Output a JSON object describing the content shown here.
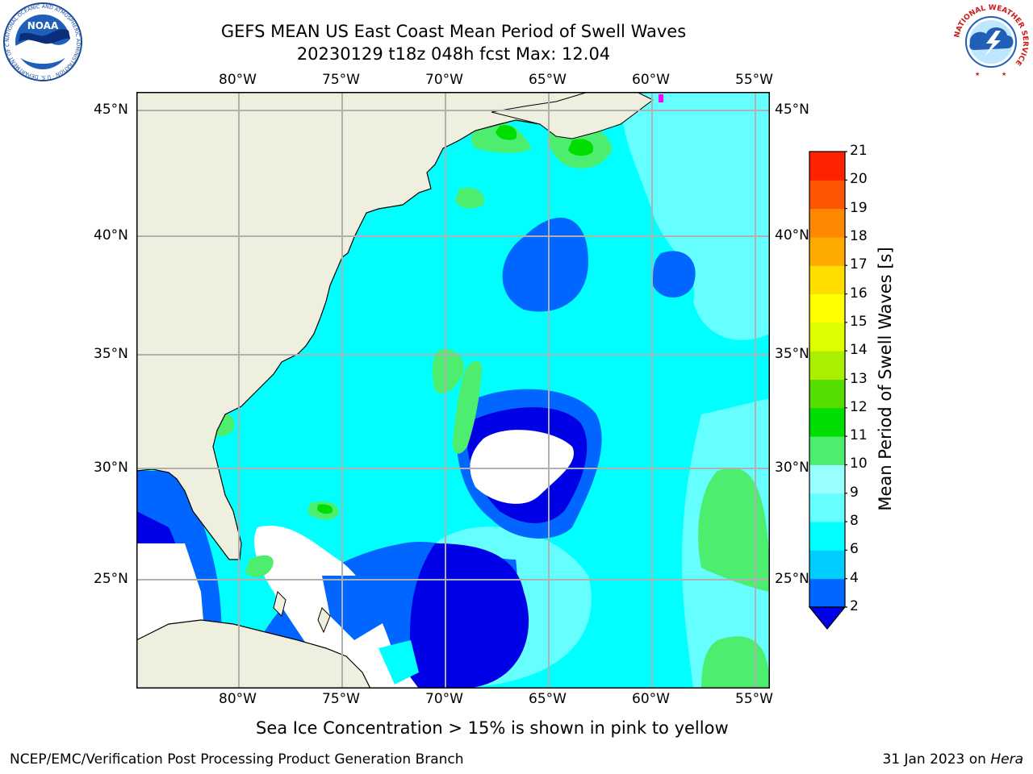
{
  "header": {
    "title_line1": "GEFS MEAN US East Coast Mean Period of Swell Waves",
    "title_line2": "20230129 t18z 048h fcst   Max: 12.04"
  },
  "logos": {
    "noaa": {
      "text": "NOAA",
      "ring_text": "NATIONAL OCEANIC AND ATMOSPHERIC ADMINISTRATION · U.S. DEPARTMENT OF COMMERCE"
    },
    "nws": {
      "ring_text": "NATIONAL WEATHER SERVICE"
    }
  },
  "map": {
    "lon_labels": [
      "80°W",
      "75°W",
      "70°W",
      "65°W",
      "60°W",
      "55°W"
    ],
    "lat_labels": [
      "45°N",
      "40°N",
      "35°N",
      "30°N",
      "25°N"
    ],
    "lon_extent": [
      "85°W",
      "54°W"
    ],
    "lat_extent": [
      "20.5°N",
      "46°N"
    ],
    "land_color": "#efefdf",
    "grid_color": "#b0b0b0"
  },
  "colorbar": {
    "label": "Mean Period of Swell Waves [s]",
    "ticks": [
      "2",
      "4",
      "6",
      "8",
      "9",
      "10",
      "11",
      "12",
      "13",
      "14",
      "15",
      "16",
      "17",
      "18",
      "19",
      "20",
      "21"
    ],
    "colors": [
      "#0000e6",
      "#0066ff",
      "#00ccff",
      "#00ffff",
      "#66ffff",
      "#99ffff",
      "#4ded70",
      "#00dd00",
      "#55dd00",
      "#aaee00",
      "#ddff00",
      "#ffff00",
      "#ffdd00",
      "#ffaa00",
      "#ff8800",
      "#ff5500",
      "#ff2200",
      "#ff0000"
    ]
  },
  "caption": "Sea Ice Concentration > 15% is shown in pink to yellow",
  "footer": {
    "left": "NCEP/EMC/Verification Post Processing Product Generation Branch",
    "right_date": "31 Jan 2023 on ",
    "right_host": "Hera"
  }
}
